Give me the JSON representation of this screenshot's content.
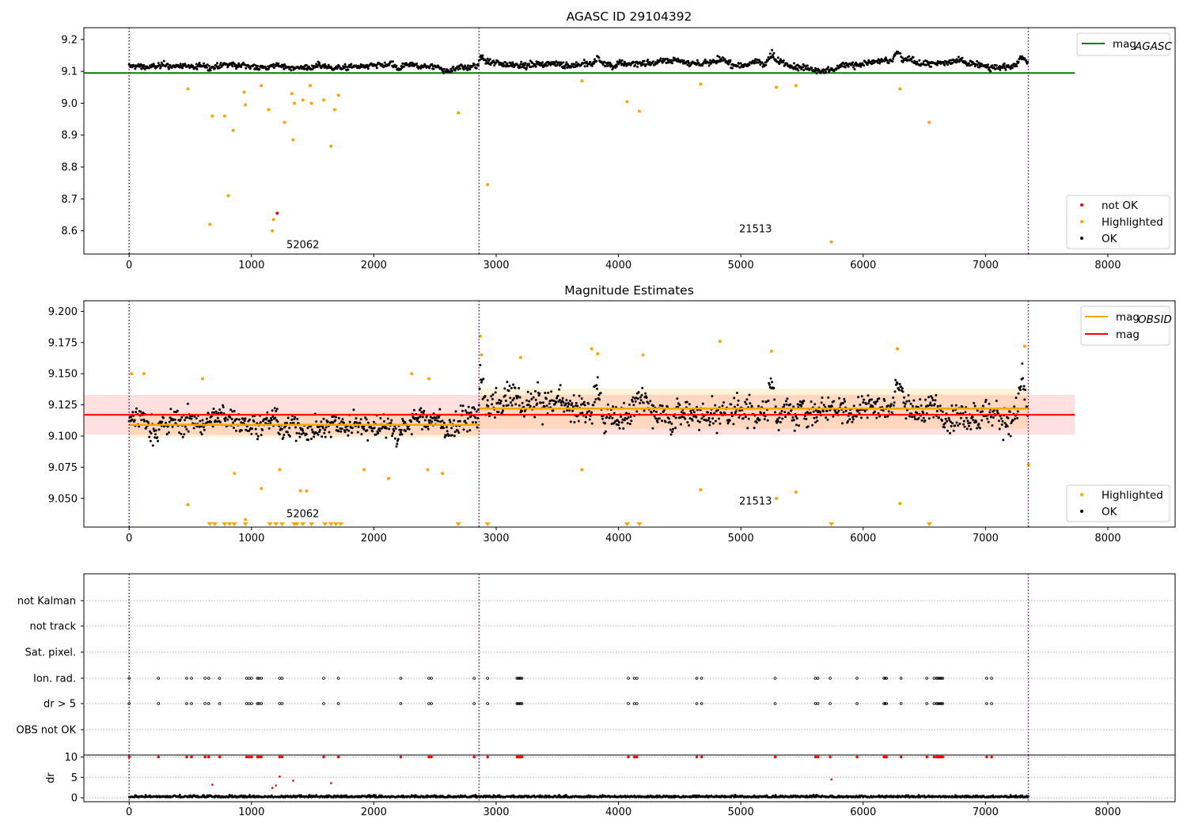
{
  "chart_data": [
    {
      "id": "agasc",
      "type": "scatter",
      "title": "AGASC ID 29104392",
      "x_ticks": [
        0,
        1000,
        2000,
        3000,
        4000,
        5000,
        6000,
        7000,
        8000
      ],
      "y_ticks": [
        "8.6",
        "8.7",
        "8.8",
        "8.9",
        "9.0",
        "9.1",
        "9.2"
      ],
      "xlim": [
        -370,
        8550
      ],
      "ylim": [
        8.527,
        9.237
      ],
      "grid": false,
      "obsid_boundaries": [
        0,
        2860,
        7350
      ],
      "obsid_labels": [
        {
          "x": 1420,
          "y": 8.545,
          "text": "52062"
        },
        {
          "x": 5120,
          "y": 8.595,
          "text": "21513"
        }
      ],
      "mag_agasc": 9.095,
      "legend_top": {
        "location": "top-right",
        "entries": [
          {
            "label": "mag",
            "sub": "AGASC",
            "color": "#008000"
          }
        ]
      },
      "legend_bottom": {
        "location": "bottom-right",
        "entries": [
          {
            "label": "not OK",
            "color": "#ff0000"
          },
          {
            "label": "Highlighted",
            "color": "#ffa500"
          },
          {
            "label": "OK",
            "color": "#000000"
          }
        ]
      },
      "ok_band": [
        {
          "x0": 0,
          "x1": 2860,
          "center": 9.115,
          "spread": 0.012,
          "excursions": [
            {
              "x": 2200,
              "dy": -0.015
            },
            {
              "x": 2580,
              "dy": -0.018
            }
          ]
        },
        {
          "x0": 2860,
          "x1": 7350,
          "center": 9.125,
          "spread": 0.014,
          "excursions": [
            {
              "x": 2880,
              "dy": 0.03
            },
            {
              "x": 3830,
              "dy": 0.03
            },
            {
              "x": 5250,
              "dy": 0.035
            },
            {
              "x": 6280,
              "dy": 0.035
            },
            {
              "x": 7300,
              "dy": 0.035
            }
          ]
        }
      ],
      "highlighted": [
        {
          "x": 480,
          "y": 9.045
        },
        {
          "x": 680,
          "y": 8.96
        },
        {
          "x": 780,
          "y": 8.96
        },
        {
          "x": 850,
          "y": 8.915
        },
        {
          "x": 940,
          "y": 9.035
        },
        {
          "x": 950,
          "y": 8.995
        },
        {
          "x": 1080,
          "y": 9.055
        },
        {
          "x": 1140,
          "y": 8.98
        },
        {
          "x": 1270,
          "y": 8.94
        },
        {
          "x": 1330,
          "y": 9.03
        },
        {
          "x": 1350,
          "y": 9.0
        },
        {
          "x": 1420,
          "y": 9.01
        },
        {
          "x": 1480,
          "y": 9.055
        },
        {
          "x": 1490,
          "y": 9.0
        },
        {
          "x": 1590,
          "y": 9.01
        },
        {
          "x": 1680,
          "y": 8.98
        },
        {
          "x": 1710,
          "y": 9.025
        },
        {
          "x": 2690,
          "y": 8.97
        },
        {
          "x": 3700,
          "y": 9.07
        },
        {
          "x": 4070,
          "y": 9.005
        },
        {
          "x": 4170,
          "y": 8.975
        },
        {
          "x": 4670,
          "y": 9.06
        },
        {
          "x": 5290,
          "y": 9.05
        },
        {
          "x": 5450,
          "y": 9.055
        },
        {
          "x": 6300,
          "y": 9.045
        },
        {
          "x": 6540,
          "y": 8.94
        },
        {
          "x": 1340,
          "y": 8.885
        },
        {
          "x": 1650,
          "y": 8.865
        },
        {
          "x": 810,
          "y": 8.71
        },
        {
          "x": 660,
          "y": 8.62
        },
        {
          "x": 1180,
          "y": 8.635
        },
        {
          "x": 1170,
          "y": 8.6
        },
        {
          "x": 2930,
          "y": 8.745
        },
        {
          "x": 5740,
          "y": 8.565
        }
      ],
      "not_ok": [
        {
          "x": 1210,
          "y": 8.655
        }
      ]
    },
    {
      "id": "estimates",
      "type": "scatter",
      "title": "Magnitude Estimates",
      "x_ticks": [
        0,
        1000,
        2000,
        3000,
        4000,
        5000,
        6000,
        7000,
        8000
      ],
      "y_ticks": [
        "9.050",
        "9.075",
        "9.100",
        "9.125",
        "9.150",
        "9.175",
        "9.200"
      ],
      "xlim": [
        -370,
        8550
      ],
      "ylim": [
        9.027,
        9.2085
      ],
      "grid": false,
      "obsid_boundaries": [
        0,
        2860,
        7350
      ],
      "obsid_labels": [
        {
          "x": 1420,
          "y": 9.035,
          "text": "52062"
        },
        {
          "x": 5120,
          "y": 9.045,
          "text": "21513"
        }
      ],
      "mag": 9.117,
      "mag_band": [
        9.101,
        9.133
      ],
      "mag_obsid": [
        {
          "x0": 0,
          "x1": 2860,
          "value": 9.109,
          "band": [
            9.099,
            9.119
          ]
        },
        {
          "x0": 2860,
          "x1": 7350,
          "value": 9.122,
          "band": [
            9.106,
            9.138
          ]
        }
      ],
      "legend_top": {
        "location": "top-right",
        "entries": [
          {
            "label": "mag",
            "sub": "OBSID",
            "color": "#ffa500"
          },
          {
            "label": "mag",
            "sub": "",
            "color": "#ff0000"
          }
        ]
      },
      "legend_bottom": {
        "location": "bottom-right",
        "entries": [
          {
            "label": "Highlighted",
            "color": "#ffa500"
          },
          {
            "label": "OK",
            "color": "#000000"
          }
        ]
      },
      "highlighted": [
        {
          "x": 480,
          "y": 9.045
        },
        {
          "x": 600,
          "y": 9.146
        },
        {
          "x": 120,
          "y": 9.15
        },
        {
          "x": 20,
          "y": 9.15
        },
        {
          "x": 860,
          "y": 9.07
        },
        {
          "x": 950,
          "y": 9.033
        },
        {
          "x": 1080,
          "y": 9.058
        },
        {
          "x": 1230,
          "y": 9.073
        },
        {
          "x": 1400,
          "y": 9.056
        },
        {
          "x": 1450,
          "y": 9.056
        },
        {
          "x": 1920,
          "y": 9.073
        },
        {
          "x": 2120,
          "y": 9.066
        },
        {
          "x": 2440,
          "y": 9.073
        },
        {
          "x": 2560,
          "y": 9.07
        },
        {
          "x": 2310,
          "y": 9.15
        },
        {
          "x": 2450,
          "y": 9.146
        },
        {
          "x": 2870,
          "y": 9.18
        },
        {
          "x": 2880,
          "y": 9.165
        },
        {
          "x": 3200,
          "y": 9.163
        },
        {
          "x": 3700,
          "y": 9.073
        },
        {
          "x": 3780,
          "y": 9.17
        },
        {
          "x": 3830,
          "y": 9.166
        },
        {
          "x": 4200,
          "y": 9.165
        },
        {
          "x": 4670,
          "y": 9.057
        },
        {
          "x": 4830,
          "y": 9.176
        },
        {
          "x": 5250,
          "y": 9.168
        },
        {
          "x": 5290,
          "y": 9.05
        },
        {
          "x": 5450,
          "y": 9.055
        },
        {
          "x": 6280,
          "y": 9.17
        },
        {
          "x": 6300,
          "y": 9.046
        },
        {
          "x": 7320,
          "y": 9.172
        },
        {
          "x": 7350,
          "y": 9.077
        }
      ],
      "below_range_x": [
        660,
        700,
        780,
        820,
        860,
        950,
        1150,
        1200,
        1250,
        1350,
        1370,
        1420,
        1490,
        1600,
        1650,
        1690,
        1730,
        2690,
        2930,
        4070,
        4170,
        5740,
        6540
      ]
    },
    {
      "id": "flags",
      "type": "scatter",
      "xlim": [
        -370,
        8550
      ],
      "obsid_boundaries": [
        0,
        2860,
        7350
      ],
      "categories": [
        "not Kalman",
        "not track",
        "Sat. pixel.",
        "Ion. rad.",
        "dr > 5",
        "OBS not OK"
      ],
      "flagged_x": [
        0,
        240,
        470,
        510,
        620,
        650,
        740,
        960,
        980,
        1000,
        1050,
        1060,
        1080,
        1230,
        1250,
        1590,
        1710,
        2220,
        2450,
        2470,
        2820,
        2930,
        3170,
        3180,
        3190,
        3200,
        3210,
        4080,
        4130,
        4150,
        4640,
        4680,
        5280,
        5610,
        5630,
        5730,
        5950,
        6170,
        6180,
        6190,
        6310,
        6520,
        6580,
        6600,
        6610,
        6620,
        6630,
        6640,
        6650,
        7010,
        7050
      ],
      "flagged_rows": [
        "Ion. rad.",
        "dr > 5"
      ]
    },
    {
      "id": "dr",
      "type": "scatter",
      "ylabel": "dr",
      "y_ticks": [
        "0",
        "5",
        "10"
      ],
      "xlim": [
        -370,
        8550
      ],
      "ylim": [
        -0.5,
        10.5
      ],
      "obsid_boundaries": [
        0,
        2860,
        7350
      ],
      "x_ticks": [
        0,
        1000,
        2000,
        3000,
        4000,
        5000,
        6000,
        7000,
        8000
      ],
      "outliers": [
        {
          "x": 680,
          "y": 3.2
        },
        {
          "x": 1170,
          "y": 2.4
        },
        {
          "x": 1200,
          "y": 3.0
        },
        {
          "x": 1230,
          "y": 5.2
        },
        {
          "x": 1340,
          "y": 4.2
        },
        {
          "x": 1650,
          "y": 3.6
        },
        {
          "x": 5740,
          "y": 4.5
        }
      ],
      "clipped_value": 10
    }
  ]
}
